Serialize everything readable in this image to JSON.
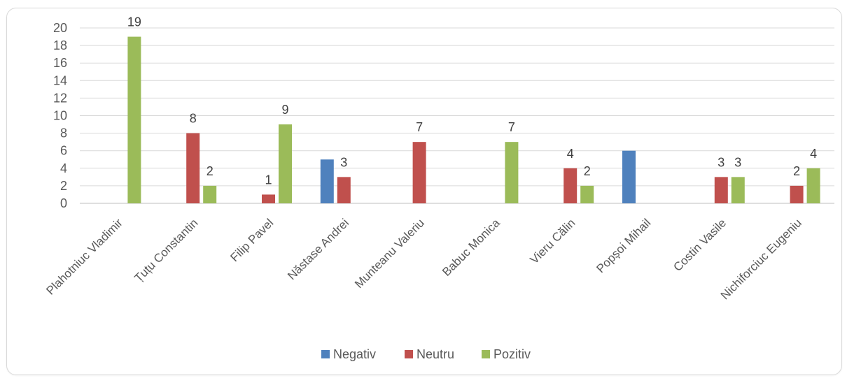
{
  "chart_data": {
    "type": "bar",
    "title": "",
    "xlabel": "",
    "ylabel": "",
    "ylim": [
      0,
      20
    ],
    "ytick_step": 2,
    "grid": true,
    "legend_position": "bottom",
    "categories": [
      "Plahotniuc Vladimir",
      "Țuțu Constantin",
      "Filip Pavel",
      "Năstase Andrei",
      "Munteanu Valeriu",
      "Babuc Monica",
      "Vieru Călin",
      "Popșoi Mihail",
      "Costin Vasile",
      "Nichiforciuc Eugeniu"
    ],
    "series": [
      {
        "name": "Negativ",
        "color": "#4f81bd",
        "values": [
          null,
          null,
          null,
          5,
          null,
          null,
          null,
          6,
          null,
          null
        ],
        "labels": [
          "",
          "",
          "",
          "",
          "",
          "",
          "",
          "",
          "",
          ""
        ]
      },
      {
        "name": "Neutru",
        "color": "#c0504d",
        "values": [
          null,
          8,
          1,
          3,
          7,
          null,
          4,
          null,
          3,
          2
        ],
        "labels": [
          "",
          "8",
          "1",
          "3",
          "7",
          "",
          "4",
          "",
          "3",
          "2"
        ]
      },
      {
        "name": "Pozitiv",
        "color": "#9bbb59",
        "values": [
          19,
          2,
          9,
          null,
          null,
          7,
          2,
          null,
          3,
          4
        ],
        "labels": [
          "19",
          "2",
          "9",
          "",
          "",
          "7",
          "2",
          "",
          "3",
          "4"
        ]
      }
    ]
  }
}
